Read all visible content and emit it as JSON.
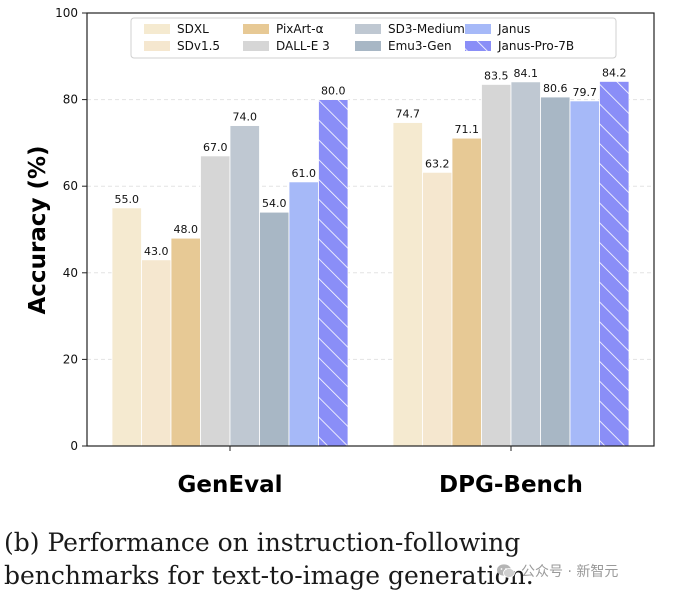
{
  "chart_data": {
    "type": "bar",
    "ylabel": "Accuracy (%)",
    "xlabel": "",
    "ylim": [
      0,
      100
    ],
    "yticks": [
      0,
      20,
      40,
      60,
      80,
      100
    ],
    "grid": true,
    "legend_position": "top",
    "categories": [
      "GenEval",
      "DPG-Bench"
    ],
    "series": [
      {
        "name": "SDXL",
        "values": [
          55.0,
          74.7
        ],
        "color": "#f5ead0",
        "hatch": false
      },
      {
        "name": "SDv1.5",
        "values": [
          43.0,
          63.2
        ],
        "color": "#f5e7cf",
        "hatch": false
      },
      {
        "name": "PixArt-α",
        "values": [
          48.0,
          71.1
        ],
        "color": "#e7c995",
        "hatch": false
      },
      {
        "name": "DALL-E 3",
        "values": [
          67.0,
          83.5
        ],
        "color": "#d6d6d6",
        "hatch": false
      },
      {
        "name": "SD3-Medium",
        "values": [
          74.0,
          84.1
        ],
        "color": "#bfc8d2",
        "hatch": false
      },
      {
        "name": "Emu3-Gen",
        "values": [
          54.0,
          80.6
        ],
        "color": "#a8b7c5",
        "hatch": false
      },
      {
        "name": "Janus",
        "values": [
          61.0,
          79.7
        ],
        "color": "#a6b9f8",
        "hatch": false
      },
      {
        "name": "Janus-Pro-7B",
        "values": [
          80.0,
          84.2
        ],
        "color": "#8a8ef7",
        "hatch": true
      }
    ],
    "value_labels": [
      [
        "55.0",
        "74.7"
      ],
      [
        "43.0",
        "63.2"
      ],
      [
        "48.0",
        "71.1"
      ],
      [
        "67.0",
        "83.5"
      ],
      [
        "74.0",
        "84.1"
      ],
      [
        "54.0",
        "80.6"
      ],
      [
        "61.0",
        "79.7"
      ],
      [
        "80.0",
        "84.2"
      ]
    ]
  },
  "caption": "(b) Performance on instruction-following benchmarks for text-to-image generation.",
  "watermark": "公众号 · 新智元"
}
